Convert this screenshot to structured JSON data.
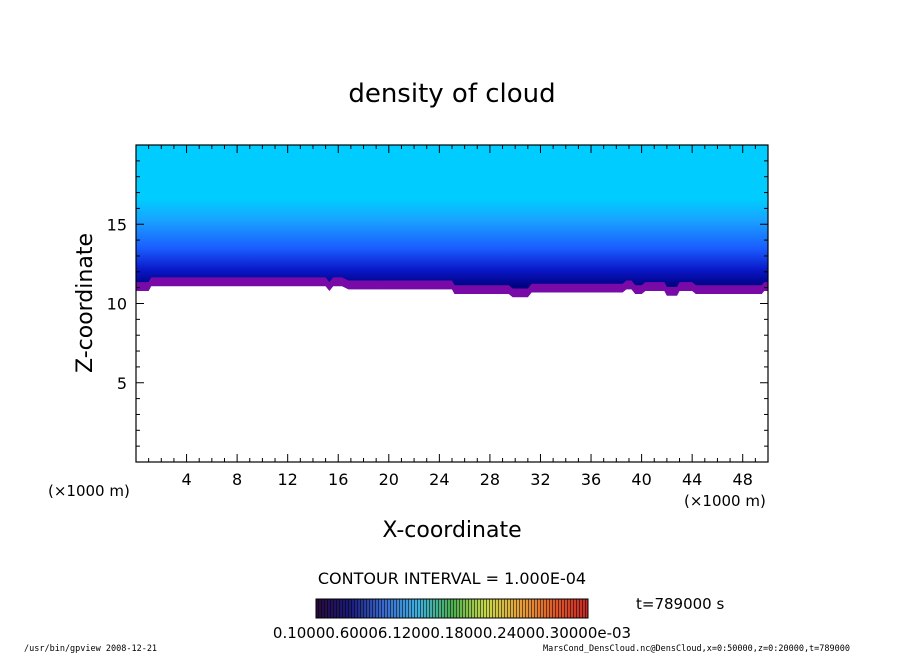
{
  "chart_data": {
    "type": "heatmap",
    "title": "density of cloud",
    "xlabel": "X-coordinate",
    "ylabel": "Z-coordinate",
    "x_unit": "(×1000 m)",
    "z_unit": "(×1000 m)",
    "xlim": [
      0,
      50
    ],
    "ylim": [
      0,
      20
    ],
    "x_ticks": [
      "4",
      "8",
      "12",
      "16",
      "20",
      "24",
      "28",
      "32",
      "36",
      "40",
      "44",
      "48"
    ],
    "y_ticks": [
      "5",
      "10",
      "15"
    ],
    "contour_interval_label": "CONTOUR INTERVAL = 1.000E-04",
    "time_label": "t=789000  s",
    "colorbar_labels": "0.10000.60006.12000.18000.24000.30000e-03",
    "colorbar_range": [
      0.0001,
      0.0003
    ],
    "colormap": [
      "#2a0b3d",
      "#1a1a7a",
      "#3a6ad0",
      "#3fb0e0",
      "#4caf50",
      "#c8d84a",
      "#e6a23c",
      "#e05a2a",
      "#c62828"
    ],
    "fill_colors": {
      "top": "#00ccff",
      "upper_blue": "#1aa0ff",
      "mid_blue": "#1a5cff",
      "deep_blue": "#0a18c8",
      "navy": "#000080",
      "base": "#7a0aa8"
    },
    "cloud_layer": {
      "top_z": 20,
      "fade_start_z": 16,
      "dense_z": 12,
      "base_profile": [
        {
          "x": 0,
          "z": 10.8
        },
        {
          "x": 1,
          "z": 10.8
        },
        {
          "x": 1.2,
          "z": 11.1
        },
        {
          "x": 15,
          "z": 11.1
        },
        {
          "x": 15.3,
          "z": 10.8
        },
        {
          "x": 15.6,
          "z": 11.1
        },
        {
          "x": 16.3,
          "z": 11.1
        },
        {
          "x": 16.8,
          "z": 10.9
        },
        {
          "x": 25,
          "z": 10.9
        },
        {
          "x": 25.2,
          "z": 10.6
        },
        {
          "x": 29.5,
          "z": 10.6
        },
        {
          "x": 29.8,
          "z": 10.4
        },
        {
          "x": 31,
          "z": 10.4
        },
        {
          "x": 31.3,
          "z": 10.7
        },
        {
          "x": 38.5,
          "z": 10.7
        },
        {
          "x": 38.8,
          "z": 10.9
        },
        {
          "x": 39.2,
          "z": 10.9
        },
        {
          "x": 39.5,
          "z": 10.6
        },
        {
          "x": 40,
          "z": 10.6
        },
        {
          "x": 40.3,
          "z": 10.8
        },
        {
          "x": 41.8,
          "z": 10.8
        },
        {
          "x": 42,
          "z": 10.5
        },
        {
          "x": 42.8,
          "z": 10.5
        },
        {
          "x": 43,
          "z": 10.8
        },
        {
          "x": 44,
          "z": 10.8
        },
        {
          "x": 44.3,
          "z": 10.6
        },
        {
          "x": 49.5,
          "z": 10.6
        },
        {
          "x": 49.7,
          "z": 10.8
        },
        {
          "x": 50,
          "z": 10.8
        }
      ]
    }
  },
  "footer": {
    "left": "/usr/bin/gpview   2008-12-21",
    "right": "MarsCond_DensCloud.nc@DensCloud,x=0:50000,z=0:20000,t=789000"
  }
}
